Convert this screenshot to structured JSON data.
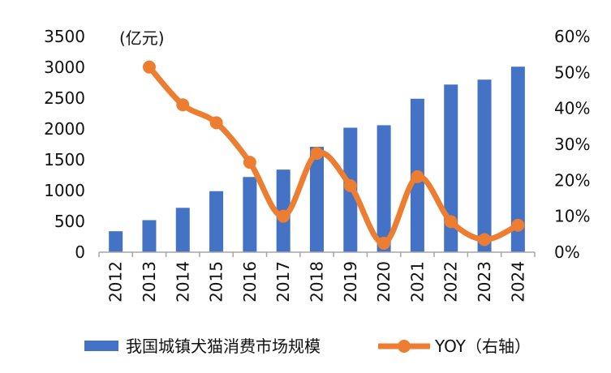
{
  "chart_data": {
    "type": "bar+line",
    "categories": [
      "2012",
      "2013",
      "2014",
      "2015",
      "2016",
      "2017",
      "2018",
      "2019",
      "2020",
      "2021",
      "2022",
      "2023",
      "2024"
    ],
    "series": [
      {
        "name": "我国城镇犬猫消费市场规模",
        "type": "bar",
        "axis": "left",
        "color": "#4472C4",
        "values": [
          340,
          520,
          720,
          990,
          1220,
          1340,
          1710,
          2020,
          2060,
          2490,
          2720,
          2800,
          3010
        ]
      },
      {
        "name": "YOY（右轴）",
        "type": "line",
        "axis": "right",
        "color": "#ED7D31",
        "values": [
          null,
          0.515,
          0.41,
          0.36,
          0.25,
          0.1,
          0.275,
          0.185,
          0.025,
          0.21,
          0.085,
          0.035,
          0.075
        ]
      }
    ],
    "left_axis": {
      "unit_label": "(亿元)",
      "ylim": [
        0,
        3500
      ],
      "ticks": [
        "0",
        "500",
        "1000",
        "1500",
        "2000",
        "2500",
        "3000",
        "3500"
      ]
    },
    "right_axis": {
      "ylim": [
        0,
        0.6
      ],
      "ticks": [
        "0%",
        "10%",
        "20%",
        "30%",
        "40%",
        "50%",
        "60%"
      ]
    },
    "legend": {
      "placement": "bottom",
      "bar_label": "我国城镇犬猫消费市场规模",
      "line_label": "YOY（右轴）"
    }
  }
}
